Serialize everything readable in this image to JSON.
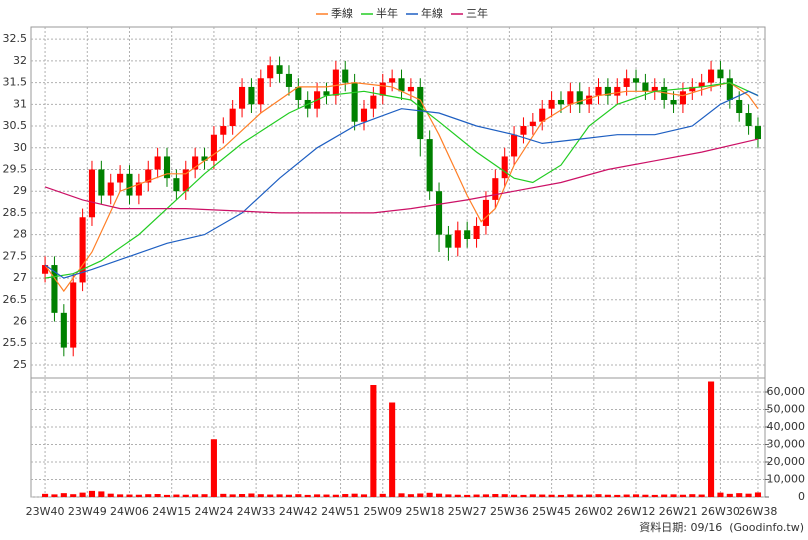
{
  "chart_data": {
    "type": "candlestick",
    "legend": "top",
    "x": [
      0,
      2,
      4,
      6,
      8,
      10,
      12,
      14,
      16,
      18,
      20,
      22,
      24,
      26,
      28,
      30,
      32,
      34,
      36,
      38,
      40,
      42,
      44,
      46,
      48,
      50,
      52,
      54,
      56,
      58,
      60,
      62,
      64,
      66,
      68,
      70,
      72,
      74,
      76,
      78,
      80,
      82,
      84,
      86,
      88,
      90,
      92,
      94,
      96,
      98,
      100,
      102,
      104,
      106,
      108,
      110,
      112,
      114,
      116,
      118,
      120,
      122,
      124,
      126,
      128,
      130,
      132,
      134,
      136,
      138,
      140,
      142,
      144,
      146,
      148,
      150,
      152
    ],
    "open": [
      27.1,
      27.3,
      26.2,
      25.4,
      26.9,
      28.4,
      29.5,
      28.9,
      29.2,
      29.4,
      28.9,
      29.2,
      29.5,
      29.8,
      29.3,
      29.0,
      29.5,
      29.8,
      29.7,
      30.3,
      30.5,
      30.9,
      31.4,
      31.0,
      31.6,
      31.9,
      31.7,
      31.4,
      31.1,
      30.9,
      31.3,
      31.2,
      31.8,
      31.5,
      30.6,
      30.9,
      31.2,
      31.5,
      31.6,
      31.3,
      31.4,
      30.2,
      29.0,
      28.0,
      27.7,
      28.1,
      27.9,
      28.2,
      28.8,
      29.3,
      29.8,
      30.3,
      30.5,
      30.6,
      30.9,
      31.1,
      31.0,
      31.3,
      31.0,
      31.2,
      31.4,
      31.2,
      31.4,
      31.6,
      31.5,
      31.3,
      31.4,
      31.1,
      31.0,
      31.3,
      31.4,
      31.5,
      31.8,
      31.6,
      31.1,
      30.8,
      30.5
    ],
    "high": [
      27.5,
      27.5,
      26.4,
      27.1,
      28.6,
      29.7,
      29.7,
      29.4,
      29.6,
      29.6,
      29.4,
      29.7,
      30.0,
      30.0,
      29.5,
      29.7,
      30.0,
      30.0,
      30.5,
      30.7,
      31.1,
      31.6,
      31.6,
      31.8,
      32.1,
      32.1,
      31.9,
      31.6,
      31.3,
      31.5,
      31.5,
      32.0,
      32.0,
      31.7,
      31.1,
      31.4,
      31.7,
      31.8,
      31.8,
      31.6,
      31.6,
      30.4,
      29.2,
      28.2,
      28.3,
      28.3,
      28.4,
      29.0,
      29.5,
      30.0,
      30.5,
      30.7,
      30.8,
      31.1,
      31.3,
      31.3,
      31.5,
      31.5,
      31.4,
      31.6,
      31.6,
      31.6,
      31.8,
      31.8,
      31.7,
      31.6,
      31.6,
      31.3,
      31.5,
      31.6,
      31.7,
      32.0,
      32.0,
      31.8,
      31.3,
      31.0,
      30.7
    ],
    "low": [
      26.9,
      26.0,
      25.2,
      25.2,
      26.7,
      28.2,
      28.7,
      28.7,
      29.0,
      28.7,
      28.7,
      29.0,
      29.3,
      29.1,
      28.8,
      28.8,
      29.3,
      29.5,
      29.5,
      30.1,
      30.3,
      30.7,
      30.8,
      30.8,
      31.4,
      31.5,
      31.2,
      30.9,
      30.7,
      30.7,
      31.0,
      31.0,
      31.3,
      30.4,
      30.4,
      30.7,
      31.0,
      31.3,
      31.1,
      31.1,
      29.8,
      28.8,
      27.6,
      27.4,
      27.5,
      27.7,
      27.7,
      28.0,
      28.6,
      29.1,
      29.6,
      30.1,
      30.3,
      30.4,
      30.7,
      30.8,
      30.8,
      30.8,
      30.8,
      31.0,
      31.0,
      31.0,
      31.2,
      31.3,
      31.1,
      31.1,
      30.9,
      30.8,
      30.8,
      31.1,
      31.2,
      31.3,
      31.4,
      30.9,
      30.6,
      30.3,
      30.0
    ],
    "close": [
      27.3,
      26.2,
      25.4,
      26.9,
      28.4,
      29.5,
      28.9,
      29.2,
      29.4,
      28.9,
      29.2,
      29.5,
      29.8,
      29.3,
      29.0,
      29.5,
      29.8,
      29.7,
      30.3,
      30.5,
      30.9,
      31.4,
      31.0,
      31.6,
      31.9,
      31.7,
      31.4,
      31.1,
      30.9,
      31.3,
      31.2,
      31.8,
      31.5,
      30.6,
      30.9,
      31.2,
      31.5,
      31.6,
      31.3,
      31.4,
      30.2,
      29.0,
      28.0,
      27.7,
      28.1,
      27.9,
      28.2,
      28.8,
      29.3,
      29.8,
      30.3,
      30.5,
      30.6,
      30.9,
      31.1,
      31.0,
      31.3,
      31.0,
      31.2,
      31.4,
      31.2,
      31.4,
      31.6,
      31.5,
      31.3,
      31.4,
      31.1,
      31.0,
      31.3,
      31.4,
      31.5,
      31.8,
      31.6,
      31.1,
      30.8,
      30.5,
      30.2
    ],
    "up_color": "#ff0000",
    "down_color": "#008000",
    "xlim": [
      -3,
      153.5
    ],
    "xticks": [
      {
        "value": 0,
        "label": "23W40"
      },
      {
        "value": 9,
        "label": "23W49"
      },
      {
        "value": 18,
        "label": "24W06"
      },
      {
        "value": 27,
        "label": "24W15"
      },
      {
        "value": 36,
        "label": "24W24"
      },
      {
        "value": 45,
        "label": "24W33"
      },
      {
        "value": 54,
        "label": "24W42"
      },
      {
        "value": 63,
        "label": "24W51"
      },
      {
        "value": 72,
        "label": "25W09"
      },
      {
        "value": 81,
        "label": "25W18"
      },
      {
        "value": 90,
        "label": "25W27"
      },
      {
        "value": 99,
        "label": "25W36"
      },
      {
        "value": 108,
        "label": "25W45"
      },
      {
        "value": 117,
        "label": "26W02"
      },
      {
        "value": 126,
        "label": "26W12"
      },
      {
        "value": 135,
        "label": "26W21"
      },
      {
        "value": 144,
        "label": "26W30"
      },
      {
        "value": 152,
        "label": "26W38"
      }
    ],
    "ylim": [
      24.7,
      32.78
    ],
    "yticks": [
      25,
      25.5,
      26,
      26.5,
      27,
      27.5,
      28,
      28.5,
      29,
      29.5,
      30,
      30.5,
      31,
      31.5,
      32,
      32.5
    ],
    "grid": true,
    "lines": [
      {
        "name": "季線",
        "color": "#ff7f27",
        "x": [
          0,
          4,
          10,
          16,
          26,
          30,
          38,
          46,
          54,
          60,
          66,
          74,
          80,
          84,
          90,
          93,
          96,
          100,
          106,
          112,
          118,
          124,
          130,
          136,
          142,
          146,
          150,
          152
        ],
        "values": [
          27.3,
          26.7,
          27.6,
          29.0,
          29.4,
          29.4,
          30.0,
          30.8,
          31.4,
          31.4,
          31.5,
          31.4,
          31.1,
          30.3,
          28.9,
          28.3,
          28.6,
          29.6,
          30.6,
          31.0,
          31.2,
          31.3,
          31.3,
          31.2,
          31.4,
          31.5,
          31.2,
          30.9
        ]
      },
      {
        "name": "半年",
        "color": "#22cc22",
        "x": [
          0,
          6,
          12,
          20,
          26,
          34,
          42,
          52,
          60,
          68,
          78,
          84,
          92,
          100,
          104,
          110,
          116,
          122,
          130,
          140,
          146,
          152
        ],
        "values": [
          27.0,
          27.1,
          27.4,
          28.0,
          28.6,
          29.4,
          30.1,
          30.8,
          31.2,
          31.3,
          31.1,
          30.6,
          29.9,
          29.3,
          29.2,
          29.6,
          30.5,
          31.0,
          31.3,
          31.4,
          31.5,
          31.2
        ]
      },
      {
        "name": "年線",
        "color": "#1e5fc2",
        "x": [
          0,
          4,
          10,
          18,
          26,
          34,
          42,
          50,
          58,
          66,
          76,
          84,
          92,
          100,
          106,
          114,
          122,
          130,
          138,
          144,
          150,
          152
        ],
        "values": [
          27.3,
          27.0,
          27.2,
          27.5,
          27.8,
          28.0,
          28.5,
          29.3,
          30.0,
          30.5,
          30.9,
          30.8,
          30.5,
          30.3,
          30.1,
          30.2,
          30.3,
          30.3,
          30.5,
          31.0,
          31.3,
          31.2
        ]
      },
      {
        "name": "三年",
        "color": "#cc1166",
        "x": [
          0,
          8,
          16,
          30,
          50,
          70,
          78,
          90,
          100,
          110,
          120,
          130,
          140,
          152
        ],
        "values": [
          29.1,
          28.8,
          28.6,
          28.6,
          28.5,
          28.5,
          28.6,
          28.8,
          29.0,
          29.2,
          29.5,
          29.7,
          29.9,
          30.2
        ]
      }
    ],
    "volume": {
      "color": "#ff0000",
      "values": [
        1800,
        1500,
        2200,
        1600,
        2500,
        3500,
        3200,
        1900,
        1500,
        1400,
        1300,
        1600,
        1700,
        1200,
        1400,
        1300,
        1500,
        1600,
        33000,
        1800,
        1500,
        1700,
        2000,
        1600,
        1400,
        1500,
        1300,
        1600,
        1200,
        1500,
        1400,
        1300,
        1700,
        1900,
        1500,
        64000,
        1800,
        54000,
        2100,
        1600,
        2000,
        2400,
        1900,
        1500,
        1300,
        1200,
        1400,
        1500,
        1700,
        1600,
        1300,
        1200,
        1500,
        1400,
        1300,
        1200,
        1500,
        1300,
        1400,
        1600,
        1300,
        1200,
        1400,
        1500,
        1300,
        1200,
        1400,
        1500,
        1300,
        1600,
        1400,
        66000,
        2500,
        1800,
        2200,
        1900,
        2600
      ],
      "y2lim": [
        0,
        68000
      ],
      "y2ticks": [
        0,
        {
          "value": 10000,
          "label": "10,000"
        },
        {
          "value": 20000,
          "label": "20,000"
        },
        {
          "value": 30000,
          "label": "30,000"
        },
        {
          "value": 40000,
          "label": "40,000"
        },
        {
          "value": 50000,
          "label": "50,000"
        },
        {
          "value": 60000,
          "label": "60,000"
        }
      ]
    },
    "footer": "資料日期: 09/16  (Goodinfo.tw)"
  }
}
